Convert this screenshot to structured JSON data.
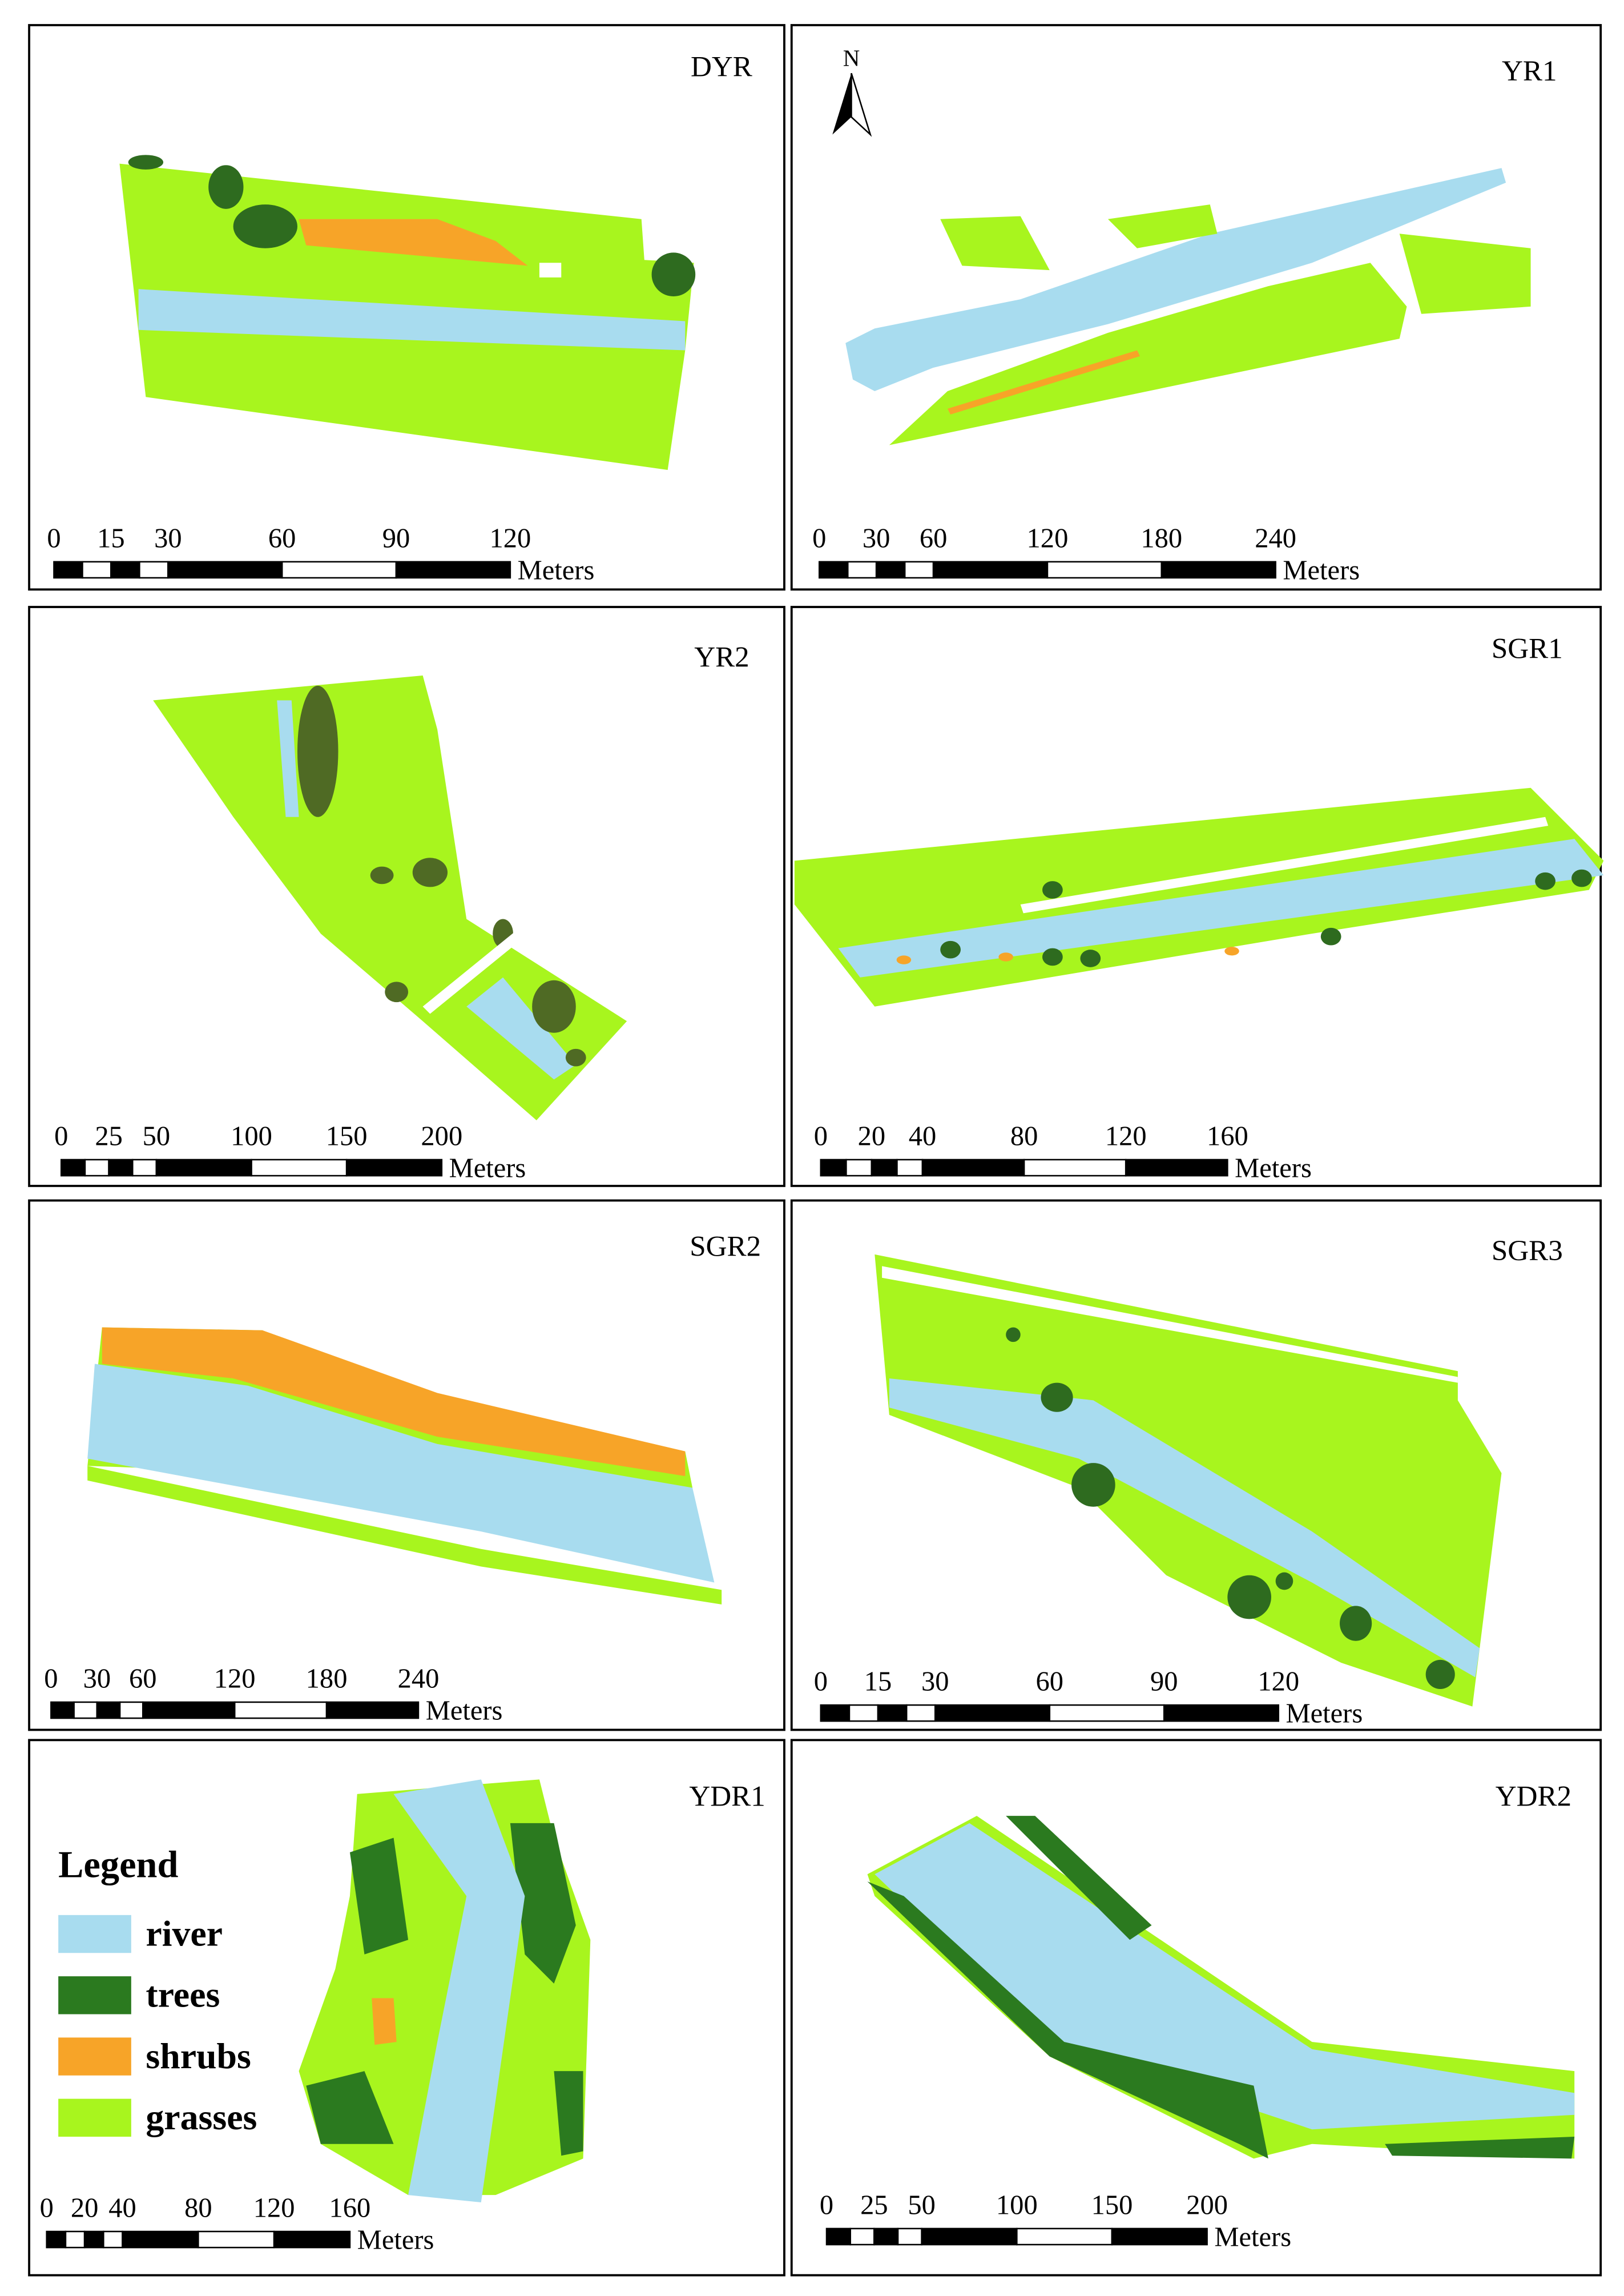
{
  "panels": [
    {
      "label": "DYR",
      "scale_ticks": [
        0,
        15,
        30,
        60,
        90,
        120
      ],
      "unit": "Meters"
    },
    {
      "label": "YR1",
      "scale_ticks": [
        0,
        30,
        60,
        120,
        180,
        240
      ],
      "unit": "Meters"
    },
    {
      "label": "YR2",
      "scale_ticks": [
        0,
        25,
        50,
        100,
        150,
        200
      ],
      "unit": "Meters"
    },
    {
      "label": "SGR1",
      "scale_ticks": [
        0,
        20,
        40,
        80,
        120,
        160
      ],
      "unit": "Meters"
    },
    {
      "label": "SGR2",
      "scale_ticks": [
        0,
        30,
        60,
        120,
        180,
        240
      ],
      "unit": "Meters"
    },
    {
      "label": "SGR3",
      "scale_ticks": [
        0,
        15,
        30,
        60,
        90,
        120
      ],
      "unit": "Meters"
    },
    {
      "label": "YDR1",
      "scale_ticks": [
        0,
        20,
        40,
        80,
        120,
        160
      ],
      "unit": "Meters"
    },
    {
      "label": "YDR2",
      "scale_ticks": [
        0,
        25,
        50,
        100,
        150,
        200
      ],
      "unit": "Meters"
    }
  ],
  "north": "N",
  "legend": {
    "title": "Legend",
    "items": [
      {
        "name": "river",
        "color": "#a8dcef"
      },
      {
        "name": "trees",
        "color": "#2b7a1f"
      },
      {
        "name": "shrubs",
        "color": "#f7a428"
      },
      {
        "name": "grasses",
        "color": "#a8f51e"
      }
    ]
  }
}
